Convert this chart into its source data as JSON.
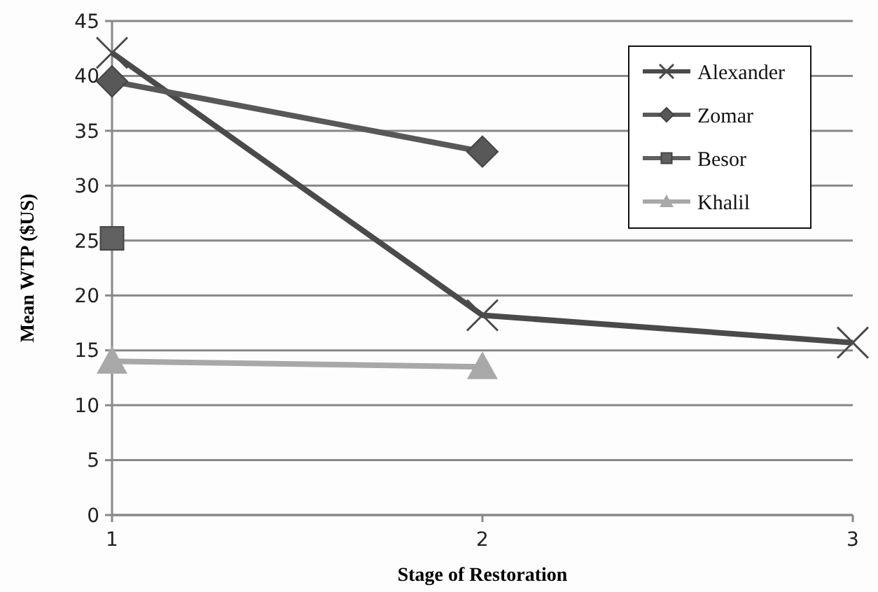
{
  "chart_data": {
    "type": "line",
    "xlabel": "Stage of Restoration",
    "ylabel": "Mean WTP ($US)",
    "xlim": [
      1,
      3
    ],
    "xticks": [
      1,
      2,
      3
    ],
    "ylim": [
      0,
      45
    ],
    "yticks": [
      0,
      5,
      10,
      15,
      20,
      25,
      30,
      35,
      40,
      45
    ],
    "grid": "y",
    "legend": "top right",
    "series": [
      {
        "name": "Alexander",
        "color": "#4a4a4a",
        "marker": "cross",
        "x": [
          1,
          2,
          3
        ],
        "values": [
          42.1,
          18.2,
          15.7
        ]
      },
      {
        "name": "Zomar",
        "color": "#585858",
        "marker": "diamond",
        "x": [
          1,
          2
        ],
        "values": [
          39.5,
          33.1
        ]
      },
      {
        "name": "Besor",
        "color": "#606060",
        "marker": "square",
        "x": [
          1
        ],
        "values": [
          25.2
        ]
      },
      {
        "name": "Khalil",
        "color": "#a8a8a8",
        "marker": "triangle",
        "x": [
          1,
          2
        ],
        "values": [
          14.0,
          13.5
        ]
      }
    ]
  }
}
